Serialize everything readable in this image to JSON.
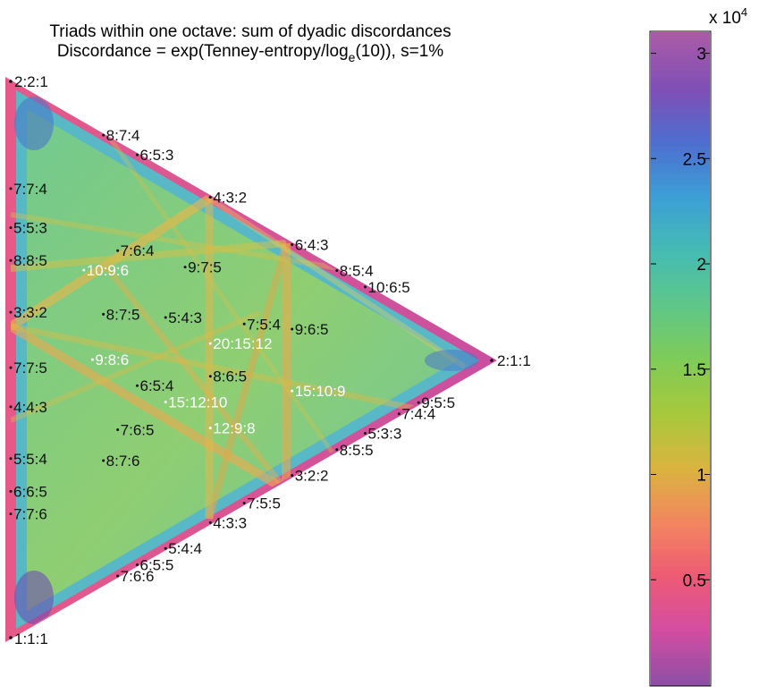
{
  "chart_data": {
    "type": "heatmap",
    "title_line1": "Triads within one octave: sum of dyadic discordances",
    "title_line2_prefix": "Discordance = exp(Tenney-entropy/log",
    "title_line2_sub": "e",
    "title_line2_suffix": "(10)), s=1%",
    "grid": false,
    "colorbar": {
      "position": "right",
      "range": [
        0,
        31000
      ],
      "multiplier_text": "x 10",
      "multiplier_exponent": "4",
      "ticks": [
        {
          "value": 5000,
          "label": "0.5"
        },
        {
          "value": 10000,
          "label": "1"
        },
        {
          "value": 15000,
          "label": "1.5"
        },
        {
          "value": 20000,
          "label": "2"
        },
        {
          "value": 25000,
          "label": "2.5"
        },
        {
          "value": 30000,
          "label": "3"
        }
      ],
      "colors": [
        "#8f4fa5",
        "#d54da1",
        "#ee5b73",
        "#f2875e",
        "#d9b43e",
        "#a7c93c",
        "#7fcb58",
        "#5ec789",
        "#45bbb3",
        "#3c9fd6",
        "#4d6fd0",
        "#7f4fb6",
        "#a85aa7"
      ]
    },
    "vertices": {
      "top": "2:2:1",
      "right": "2:1:1",
      "bottom": "1:1:1"
    },
    "triads": [
      {
        "label": "8:7:4",
        "a": 8,
        "b": 7,
        "c": 4,
        "color": "dark"
      },
      {
        "label": "6:5:3",
        "a": 6,
        "b": 5,
        "c": 3,
        "color": "dark"
      },
      {
        "label": "7:7:4",
        "a": 7,
        "b": 7,
        "c": 4,
        "color": "dark"
      },
      {
        "label": "4:3:2",
        "a": 4,
        "b": 3,
        "c": 2,
        "color": "dark"
      },
      {
        "label": "5:5:3",
        "a": 5,
        "b": 5,
        "c": 3,
        "color": "dark"
      },
      {
        "label": "6:4:3",
        "a": 6,
        "b": 4,
        "c": 3,
        "color": "dark"
      },
      {
        "label": "7:6:4",
        "a": 7,
        "b": 6,
        "c": 4,
        "color": "dark"
      },
      {
        "label": "8:8:5",
        "a": 8,
        "b": 8,
        "c": 5,
        "color": "dark"
      },
      {
        "label": "8:5:4",
        "a": 8,
        "b": 5,
        "c": 4,
        "color": "dark"
      },
      {
        "label": "10:9:6",
        "a": 10,
        "b": 9,
        "c": 6,
        "color": "light"
      },
      {
        "label": "9:7:5",
        "a": 9,
        "b": 7,
        "c": 5,
        "color": "dark"
      },
      {
        "label": "10:6:5",
        "a": 10,
        "b": 6,
        "c": 5,
        "color": "dark"
      },
      {
        "label": "3:3:2",
        "a": 3,
        "b": 3,
        "c": 2,
        "color": "dark"
      },
      {
        "label": "8:7:5",
        "a": 8,
        "b": 7,
        "c": 5,
        "color": "dark"
      },
      {
        "label": "5:4:3",
        "a": 5,
        "b": 4,
        "c": 3,
        "color": "dark"
      },
      {
        "label": "7:5:4",
        "a": 7,
        "b": 5,
        "c": 4,
        "color": "dark"
      },
      {
        "label": "9:6:5",
        "a": 9,
        "b": 6,
        "c": 5,
        "color": "dark"
      },
      {
        "label": "20:15:12",
        "a": 20,
        "b": 15,
        "c": 12,
        "color": "light"
      },
      {
        "label": "7:7:5",
        "a": 7,
        "b": 7,
        "c": 5,
        "color": "dark"
      },
      {
        "label": "9:8:6",
        "a": 9,
        "b": 8,
        "c": 6,
        "color": "light"
      },
      {
        "label": "8:6:5",
        "a": 8,
        "b": 6,
        "c": 5,
        "color": "dark"
      },
      {
        "label": "6:5:4",
        "a": 6,
        "b": 5,
        "c": 4,
        "color": "dark"
      },
      {
        "label": "15:10:9",
        "a": 15,
        "b": 10,
        "c": 9,
        "color": "light"
      },
      {
        "label": "15:12:10",
        "a": 15,
        "b": 12,
        "c": 10,
        "color": "light"
      },
      {
        "label": "9:5:5",
        "a": 9,
        "b": 5,
        "c": 5,
        "color": "dark"
      },
      {
        "label": "4:4:3",
        "a": 4,
        "b": 4,
        "c": 3,
        "color": "dark"
      },
      {
        "label": "7:4:4",
        "a": 7,
        "b": 4,
        "c": 4,
        "color": "dark"
      },
      {
        "label": "7:6:5",
        "a": 7,
        "b": 6,
        "c": 5,
        "color": "dark"
      },
      {
        "label": "12:9:8",
        "a": 12,
        "b": 9,
        "c": 8,
        "color": "light"
      },
      {
        "label": "5:3:3",
        "a": 5,
        "b": 3,
        "c": 3,
        "color": "dark"
      },
      {
        "label": "8:5:5",
        "a": 8,
        "b": 5,
        "c": 5,
        "color": "dark"
      },
      {
        "label": "5:5:4",
        "a": 5,
        "b": 5,
        "c": 4,
        "color": "dark"
      },
      {
        "label": "8:7:6",
        "a": 8,
        "b": 7,
        "c": 6,
        "color": "dark"
      },
      {
        "label": "3:2:2",
        "a": 3,
        "b": 2,
        "c": 2,
        "color": "dark"
      },
      {
        "label": "6:6:5",
        "a": 6,
        "b": 6,
        "c": 5,
        "color": "dark"
      },
      {
        "label": "7:5:5",
        "a": 7,
        "b": 5,
        "c": 5,
        "color": "dark"
      },
      {
        "label": "7:7:6",
        "a": 7,
        "b": 7,
        "c": 6,
        "color": "dark"
      },
      {
        "label": "4:3:3",
        "a": 4,
        "b": 3,
        "c": 3,
        "color": "dark"
      },
      {
        "label": "5:4:4",
        "a": 5,
        "b": 4,
        "c": 4,
        "color": "dark"
      },
      {
        "label": "6:5:5",
        "a": 6,
        "b": 5,
        "c": 5,
        "color": "dark"
      },
      {
        "label": "7:6:6",
        "a": 7,
        "b": 6,
        "c": 6,
        "color": "dark"
      }
    ]
  }
}
